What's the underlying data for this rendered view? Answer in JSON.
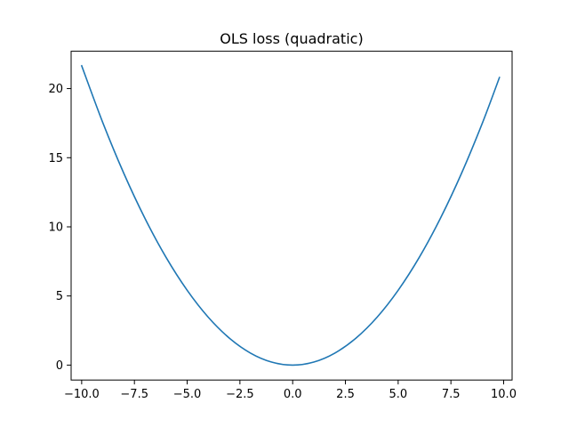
{
  "chart_data": {
    "type": "line",
    "title": "OLS loss (quadratic)",
    "xlabel": "",
    "ylabel": "",
    "xlim": [
      -10.5,
      10.4
    ],
    "ylim": [
      -1.08,
      22.7
    ],
    "xticks": [
      -10.0,
      -7.5,
      -5.0,
      -2.5,
      0.0,
      2.5,
      5.0,
      7.5,
      10.0
    ],
    "xtick_labels": [
      "−10.0",
      "−7.5",
      "−5.0",
      "−2.5",
      "0.0",
      "2.5",
      "5.0",
      "7.5",
      "10.0"
    ],
    "yticks": [
      0,
      5,
      10,
      15,
      20
    ],
    "ytick_labels": [
      "0",
      "5",
      "10",
      "15",
      "20"
    ],
    "grid": false,
    "legend": "none",
    "series": [
      {
        "color": "#1f77b4",
        "x": [
          -10.0,
          -9.0,
          -8.0,
          -7.0,
          -6.0,
          -5.0,
          -4.0,
          -3.0,
          -2.0,
          -1.0,
          0.0,
          1.0,
          2.0,
          3.0,
          4.0,
          5.0,
          6.0,
          7.0,
          8.0,
          9.0,
          9.8
        ],
        "y": [
          21.65,
          17.54,
          13.86,
          10.61,
          7.79,
          5.41,
          3.46,
          1.95,
          0.87,
          0.22,
          0.0,
          0.22,
          0.87,
          1.95,
          3.46,
          5.41,
          7.79,
          10.61,
          13.86,
          17.54,
          20.8
        ]
      }
    ]
  }
}
